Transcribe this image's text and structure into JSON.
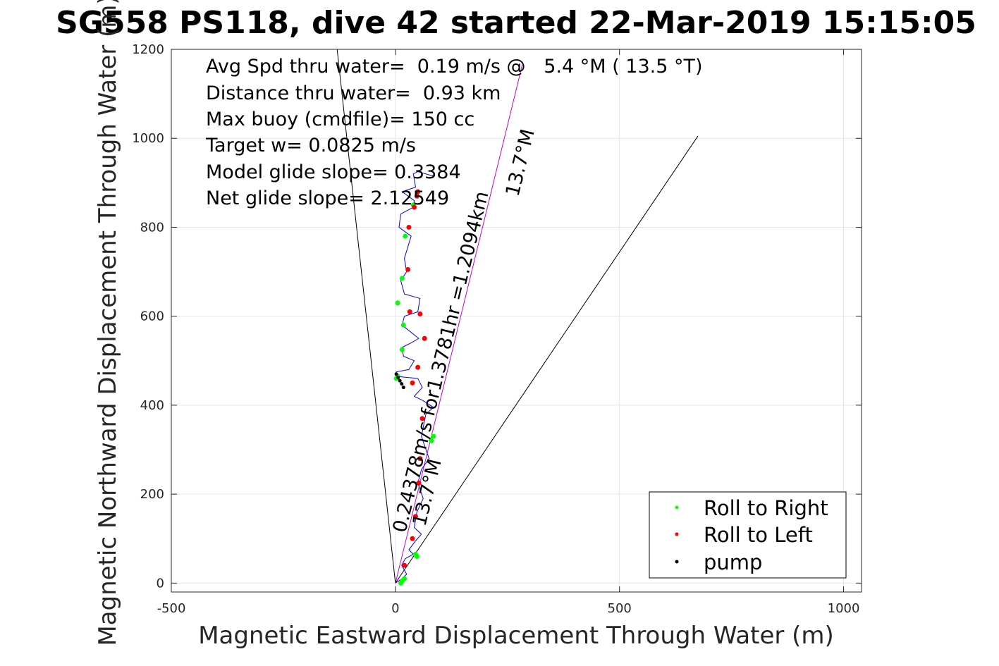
{
  "chart_data": {
    "type": "scatter",
    "title": "SG558 PS118, dive 42 started 22-Mar-2019 15:15:05",
    "xlabel": "Magnetic Eastward Displacement Through Water (m)",
    "ylabel": "Magnetic Northward Displacement Through Water (m)",
    "xlim": [
      -500,
      1040
    ],
    "ylim": [
      -20,
      1200
    ],
    "xticks": [
      -500,
      0,
      500,
      1000
    ],
    "yticks": [
      0,
      200,
      400,
      600,
      800,
      1000,
      1200
    ],
    "grid": true,
    "legend_position": "bottom-right",
    "annotations": [
      "Avg Spd thru water=  0.19 m/s @   5.4 °M ( 13.5 °T)",
      "Distance thru water=  0.93 km",
      "Max buoy (cmdfile)= 150 cc",
      "Target w= 0.0825 m/s",
      "Model glide slope= 0.3384",
      "Net glide slope= 2.12549"
    ],
    "rotated_labels": {
      "track_label": "0.24378m/s for1.3781hr =1.2094km",
      "track_heading": "13.7°M",
      "lower_heading": "13.7°M"
    },
    "reference_lines": [
      {
        "name": "",
        "color": "#000000",
        "x": [
          0,
          -130
        ],
        "y": [
          0,
          1200
        ]
      },
      {
        "name": "",
        "color": "#000000",
        "x": [
          0,
          675
        ],
        "y": [
          0,
          1005
        ]
      },
      {
        "name": "",
        "color": "#cc00cc",
        "x": [
          0,
          283
        ],
        "y": [
          0,
          1165
        ]
      }
    ],
    "path": {
      "color": "#0000ff",
      "x": [
        0,
        15,
        25,
        14,
        22,
        40,
        30,
        45,
        58,
        42,
        48,
        62,
        50,
        58,
        75,
        58,
        68,
        85,
        62,
        42,
        60,
        50,
        0,
        2,
        30,
        42,
        18,
        15,
        35,
        52,
        15,
        20,
        50,
        55,
        20,
        12,
        25,
        20,
        35,
        8,
        12,
        40,
        42,
        15,
        45,
        40,
        50,
        85
      ],
      "y": [
        0,
        10,
        20,
        40,
        55,
        65,
        75,
        95,
        110,
        125,
        160,
        190,
        225,
        255,
        280,
        330,
        380,
        395,
        410,
        420,
        440,
        460,
        465,
        475,
        480,
        500,
        510,
        530,
        540,
        550,
        580,
        600,
        610,
        640,
        650,
        680,
        700,
        730,
        780,
        800,
        830,
        845,
        860,
        880,
        890,
        920,
        925,
        915
      ]
    },
    "series": [
      {
        "name": "Roll to Right",
        "color": "#00ff00",
        "x": [
          12,
          15,
          20,
          48,
          45,
          80,
          85,
          2,
          5,
          15,
          18,
          5,
          15,
          22,
          40
        ],
        "y": [
          0,
          5,
          10,
          60,
          65,
          320,
          330,
          460,
          465,
          525,
          580,
          630,
          685,
          780,
          850
        ]
      },
      {
        "name": "Roll to Left",
        "color": "#ff0000",
        "x": [
          20,
          38,
          45,
          52,
          55,
          60,
          65,
          50,
          38,
          55,
          32,
          28,
          30,
          42,
          48,
          50
        ],
        "y": [
          40,
          100,
          150,
          225,
          280,
          370,
          550,
          485,
          450,
          605,
          610,
          705,
          800,
          845,
          870,
          880
        ]
      },
      {
        "name": "pump",
        "color": "#000000",
        "x": [
          2,
          6,
          10,
          14,
          18
        ],
        "y": [
          470,
          462,
          455,
          448,
          440
        ]
      }
    ]
  }
}
